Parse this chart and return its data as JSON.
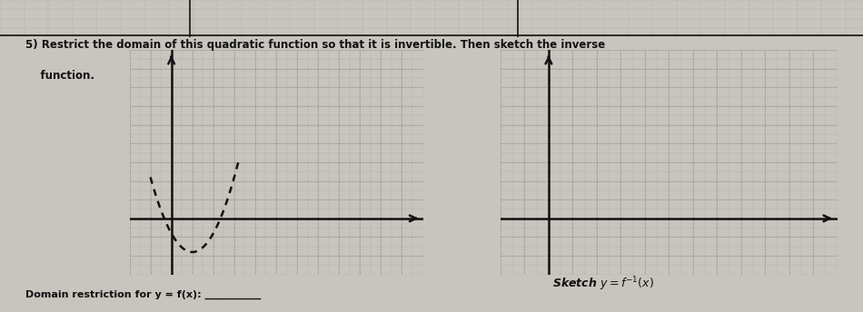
{
  "bg_color": "#c8c5be",
  "paper_color": "#c8c5be",
  "title_line1": "5) Restrict the domain of this quadratic function so that it is invertible. Then sketch the inverse",
  "title_line2": "    function.",
  "domain_label": "Domain restriction for y = f(x): ___________",
  "grid_color": "#888880",
  "axis_color": "#111111",
  "curve_color": "#111111",
  "text_color": "#111111",
  "top_strip_color": "#b0aea8",
  "left_graph": {
    "xlim": [
      -2,
      12
    ],
    "ylim": [
      -3,
      9
    ],
    "y_axis_x": 0,
    "x_axis_y": 0,
    "parabola_x_start": -1.0,
    "parabola_x_end": 3.2,
    "vertex_x": 1.0,
    "vertex_y": -1.8
  },
  "right_graph": {
    "xlim": [
      -2,
      12
    ],
    "ylim": [
      -3,
      9
    ]
  }
}
